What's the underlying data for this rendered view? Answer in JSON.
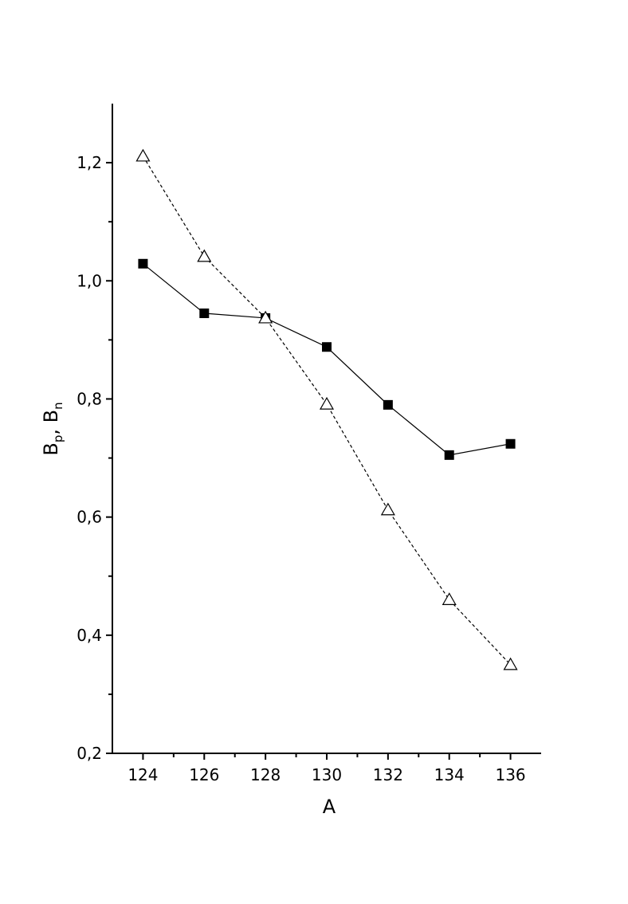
{
  "chart_data": {
    "type": "line",
    "xlabel": "A",
    "ylabel": [
      "B",
      "p",
      ", B",
      "n"
    ],
    "x": [
      124,
      126,
      128,
      130,
      132,
      134,
      136
    ],
    "series": [
      {
        "color": "#000000",
        "marker": "square",
        "dash": "solid",
        "values": [
          1.029,
          0.945,
          0.937,
          0.888,
          0.79,
          0.705,
          0.724
        ]
      },
      {
        "color": "#000000",
        "marker": "triangle-open",
        "dash": "dashed",
        "values": [
          1.211,
          1.041,
          0.937,
          0.791,
          0.612,
          0.46,
          0.35
        ]
      }
    ],
    "xlim": [
      123,
      137
    ],
    "ylim": [
      0.2,
      1.3
    ],
    "xticks": [
      124,
      126,
      128,
      130,
      132,
      134,
      136
    ],
    "xminorticks": [
      125,
      127,
      129,
      131,
      133,
      135
    ],
    "yticks": [
      {
        "value": 0.2,
        "label": "0,2"
      },
      {
        "value": 0.4,
        "label": "0,4"
      },
      {
        "value": 0.6,
        "label": "0,6"
      },
      {
        "value": 0.8,
        "label": "0,8"
      },
      {
        "value": 1.0,
        "label": "1,0"
      },
      {
        "value": 1.2,
        "label": "1,2"
      }
    ],
    "yminorticks": [
      0.3,
      0.5,
      0.7,
      0.9,
      1.1
    ],
    "grid": false
  }
}
